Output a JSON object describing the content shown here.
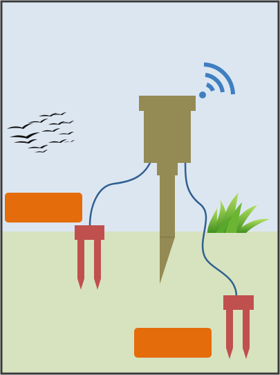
{
  "diagram": {
    "title": "",
    "colors": {
      "sky": "#dce6f1",
      "ground": "#d7e3bf",
      "frame": "#3a3a3a",
      "device_body": "#948a54",
      "probe": "#c0504d",
      "cable": "#2f5f8f",
      "wifi": "#3e7fc1",
      "label_box": "#e46c0a",
      "birds": "#111111",
      "grass_light": "#9bd14a",
      "grass_dark": "#3f8f1f"
    },
    "icons": [
      "wifi-signal-icon",
      "birds-flock-icon",
      "grass-tuft-icon"
    ],
    "labels": {
      "left_box": "",
      "bottom_box": ""
    }
  }
}
